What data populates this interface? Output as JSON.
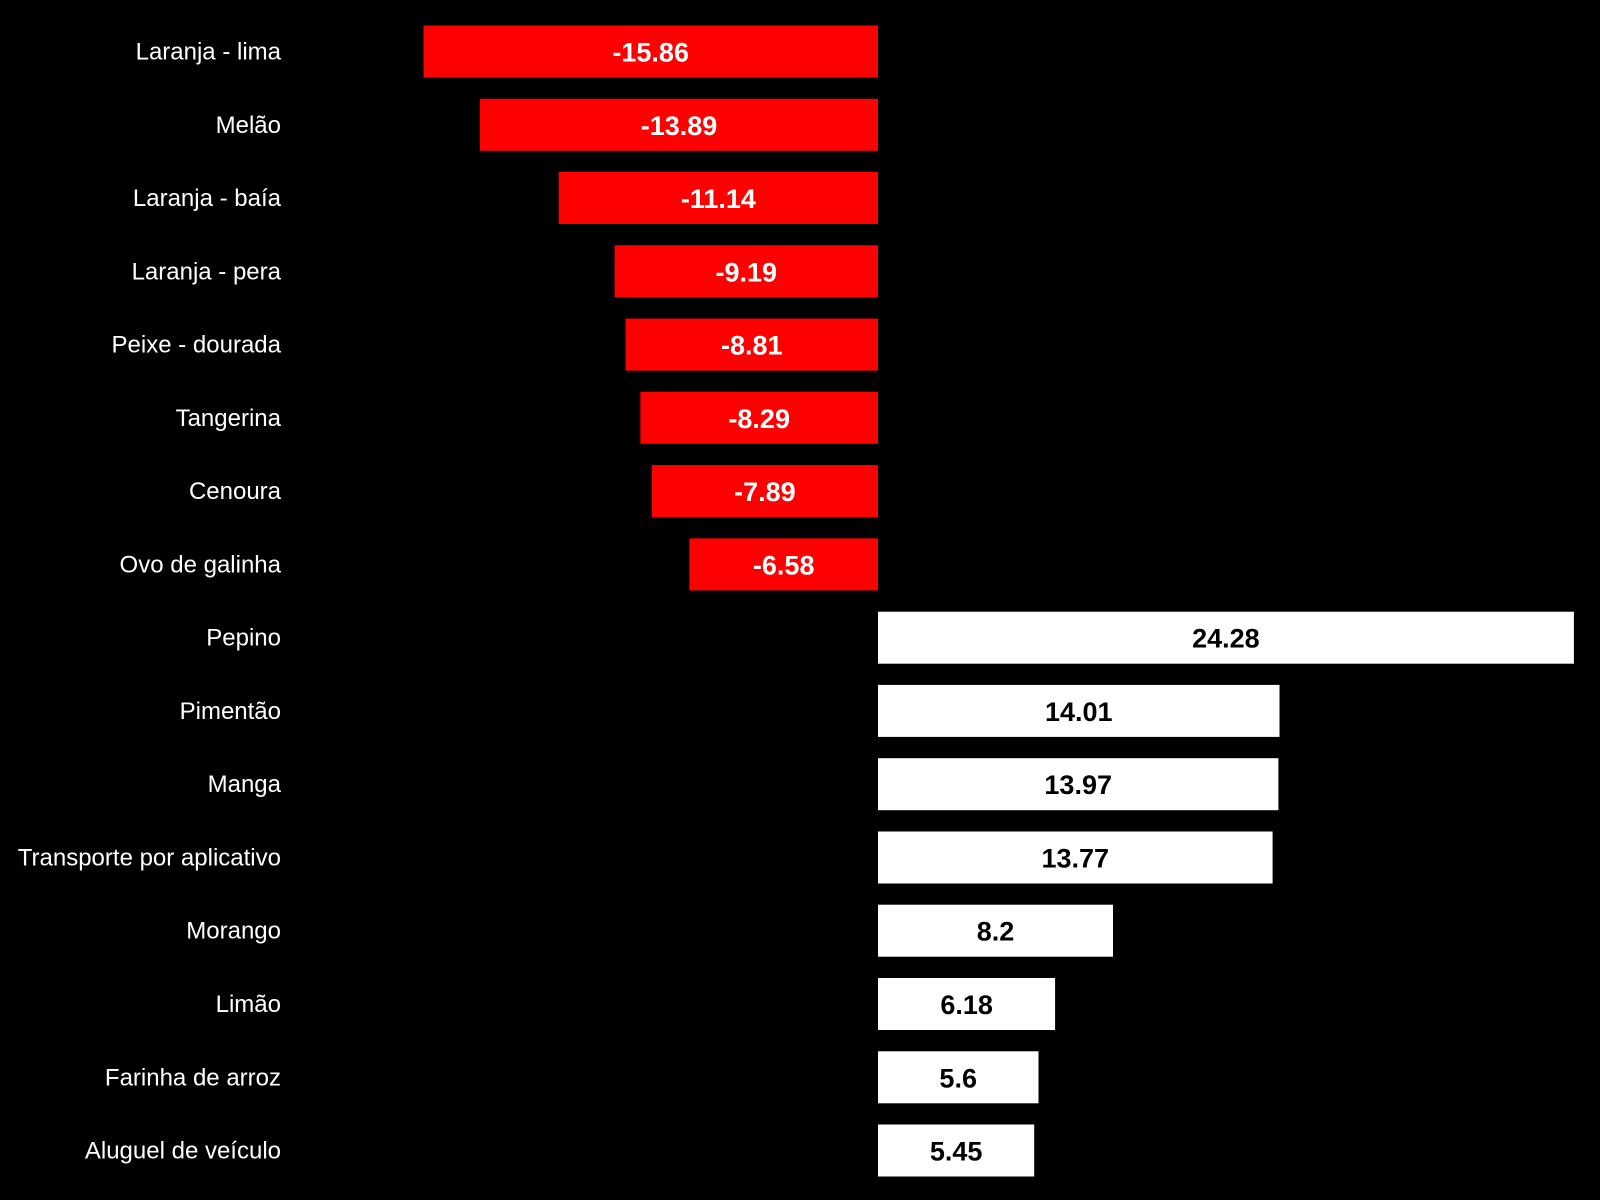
{
  "chart_data": {
    "type": "bar",
    "orientation": "horizontal",
    "categories": [
      "Laranja - lima",
      "Melão",
      "Laranja - baía",
      "Laranja - pera",
      "Peixe - dourada",
      "Tangerina",
      "Cenoura",
      "Ovo de galinha",
      "Pepino",
      "Pimentão",
      "Manga",
      "Transporte por aplicativo",
      "Morango",
      "Limão",
      "Farinha de arroz",
      "Aluguel de veículo"
    ],
    "values": [
      -15.86,
      -13.89,
      -11.14,
      -9.19,
      -8.81,
      -8.29,
      -7.89,
      -6.58,
      24.28,
      14.01,
      13.97,
      13.77,
      8.2,
      6.18,
      5.6,
      5.45
    ],
    "value_labels": [
      "-15.86",
      "-13.89",
      "-11.14",
      "-9.19",
      "-8.81",
      "-8.29",
      "-7.89",
      "-6.58",
      "24.28",
      "14.01",
      "13.97",
      "13.77",
      "8.2",
      "6.18",
      "5.6",
      "5.45"
    ],
    "colors": {
      "background": "#000000",
      "negative_bar": "#ff0000",
      "positive_bar": "#ffffff",
      "negative_label": "#ffffff",
      "positive_label": "#000000",
      "category_label": "#ffffff"
    },
    "xlim": [
      -15.86,
      24.28
    ],
    "grid": false,
    "legend": "none"
  }
}
